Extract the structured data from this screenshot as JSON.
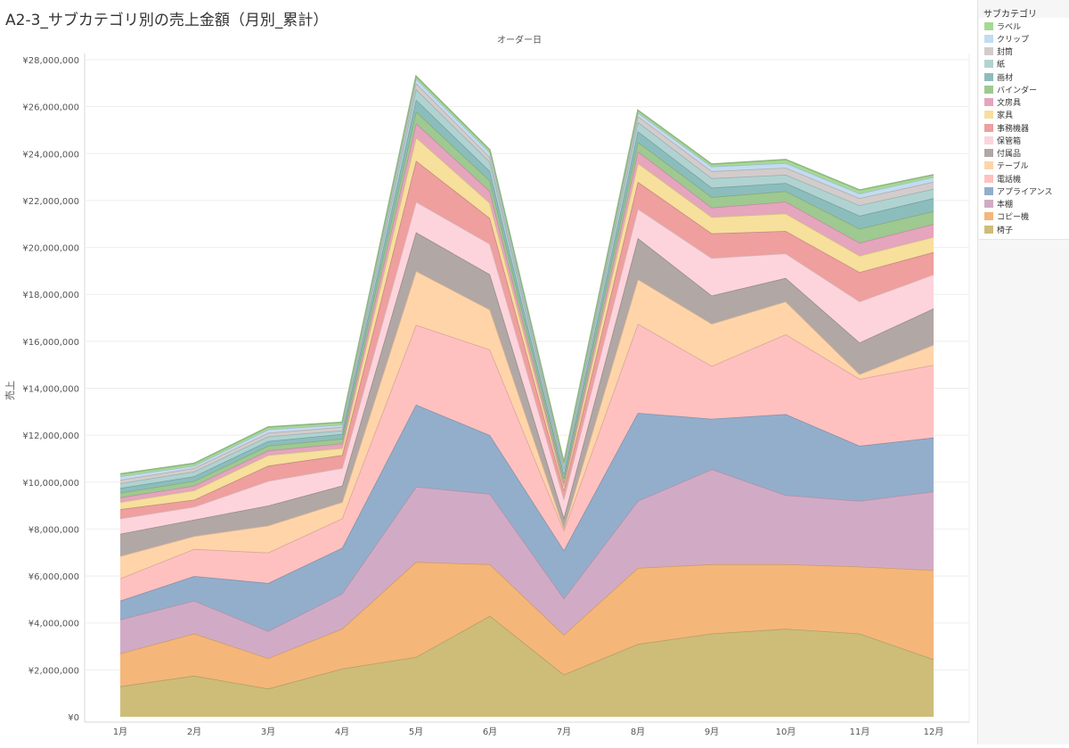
{
  "title": "A2-3_サブカテゴリ別の売上金額（月別_累計）",
  "legend": {
    "title": "サブカテゴリ",
    "order": [
      "ラベル",
      "クリップ",
      "封筒",
      "紙",
      "画材",
      "バインダー",
      "文房具",
      "家具",
      "事務機器",
      "保管箱",
      "付属品",
      "テーブル",
      "電話機",
      "アプライアンス",
      "本棚",
      "コピー機",
      "椅子"
    ]
  },
  "chart_data": {
    "type": "area",
    "stacked": true,
    "title": "",
    "top_axis_label": "オーダー日",
    "xlabel": "",
    "ylabel": "売上",
    "categories": [
      "1月",
      "2月",
      "3月",
      "4月",
      "5月",
      "6月",
      "7月",
      "8月",
      "9月",
      "10月",
      "11月",
      "12月"
    ],
    "ylim": [
      0,
      28000000
    ],
    "yticks": [
      0,
      2000000,
      4000000,
      6000000,
      8000000,
      10000000,
      12000000,
      14000000,
      16000000,
      18000000,
      20000000,
      22000000,
      24000000,
      26000000,
      28000000
    ],
    "ytick_labels": [
      "¥0",
      "¥2,000,000",
      "¥4,000,000",
      "¥6,000,000",
      "¥8,000,000",
      "¥10,000,000",
      "¥12,000,000",
      "¥14,000,000",
      "¥16,000,000",
      "¥18,000,000",
      "¥20,000,000",
      "¥22,000,000",
      "¥24,000,000",
      "¥26,000,000",
      "¥28,000,000"
    ],
    "grid": true,
    "legend_position": "right",
    "series": [
      {
        "name": "椅子",
        "color": "#cdbd79",
        "values": [
          1300000,
          1750000,
          1200000,
          2050000,
          2550000,
          4300000,
          1800000,
          3100000,
          3550000,
          3750000,
          3550000,
          2450000
        ]
      },
      {
        "name": "コピー機",
        "color": "#f5b679",
        "values": [
          1400000,
          1800000,
          1300000,
          1700000,
          4050000,
          2200000,
          1700000,
          3250000,
          2950000,
          2750000,
          2850000,
          3800000
        ]
      },
      {
        "name": "本棚",
        "color": "#d1abc5",
        "values": [
          1450000,
          1400000,
          1150000,
          1500000,
          3200000,
          3000000,
          1550000,
          2850000,
          4050000,
          2950000,
          2800000,
          3350000
        ]
      },
      {
        "name": "アプライアンス",
        "color": "#93aecb",
        "values": [
          800000,
          1050000,
          2050000,
          1950000,
          3500000,
          2500000,
          2050000,
          3750000,
          2150000,
          3450000,
          2350000,
          2300000
        ]
      },
      {
        "name": "電話機",
        "color": "#ffc1bf",
        "values": [
          950000,
          1150000,
          1300000,
          1250000,
          3400000,
          3650000,
          850000,
          3800000,
          2250000,
          3400000,
          2850000,
          3100000
        ]
      },
      {
        "name": "テーブル",
        "color": "#ffd4a9",
        "values": [
          950000,
          550000,
          1150000,
          700000,
          2300000,
          1700000,
          100000,
          1900000,
          1800000,
          1400000,
          200000,
          850000
        ]
      },
      {
        "name": "付属品",
        "color": "#b1a7a5",
        "values": [
          950000,
          700000,
          850000,
          700000,
          1650000,
          1500000,
          450000,
          1750000,
          1200000,
          1000000,
          1350000,
          1550000
        ]
      },
      {
        "name": "保管箱",
        "color": "#fdd4dc",
        "values": [
          650000,
          550000,
          1050000,
          750000,
          1300000,
          1300000,
          800000,
          1250000,
          1600000,
          1050000,
          1750000,
          1450000
        ]
      },
      {
        "name": "事務機器",
        "color": "#ee9f9e",
        "values": [
          400000,
          300000,
          650000,
          550000,
          1750000,
          1100000,
          350000,
          1150000,
          1050000,
          950000,
          1250000,
          950000
        ]
      },
      {
        "name": "家具",
        "color": "#f7df9c",
        "values": [
          300000,
          400000,
          450000,
          300000,
          1000000,
          650000,
          150000,
          800000,
          700000,
          750000,
          700000,
          650000
        ]
      },
      {
        "name": "文房具",
        "color": "#e5a5bd",
        "values": [
          200000,
          200000,
          200000,
          200000,
          600000,
          500000,
          150000,
          500000,
          400000,
          500000,
          550000,
          550000
        ]
      },
      {
        "name": "バインダー",
        "color": "#9ec990",
        "values": [
          200000,
          200000,
          200000,
          200000,
          500000,
          450000,
          200000,
          400000,
          450000,
          450000,
          600000,
          550000
        ]
      },
      {
        "name": "画材",
        "color": "#8cbdbd",
        "values": [
          200000,
          200000,
          200000,
          200000,
          500000,
          400000,
          200000,
          450000,
          400000,
          350000,
          550000,
          550000
        ]
      },
      {
        "name": "紙",
        "color": "#b0d3d2",
        "values": [
          200000,
          200000,
          200000,
          150000,
          450000,
          400000,
          200000,
          400000,
          400000,
          350000,
          450000,
          400000
        ]
      },
      {
        "name": "封筒",
        "color": "#d3cccb",
        "values": [
          150000,
          150000,
          150000,
          150000,
          250000,
          200000,
          100000,
          250000,
          300000,
          300000,
          300000,
          300000
        ]
      },
      {
        "name": "クリップ",
        "color": "#c2dcf0",
        "values": [
          150000,
          100000,
          150000,
          100000,
          200000,
          200000,
          100000,
          150000,
          200000,
          200000,
          200000,
          200000
        ]
      },
      {
        "name": "ラベル",
        "color": "#a6d994",
        "values": [
          100000,
          100000,
          100000,
          100000,
          100000,
          100000,
          100000,
          100000,
          100000,
          150000,
          150000,
          100000
        ]
      }
    ]
  }
}
